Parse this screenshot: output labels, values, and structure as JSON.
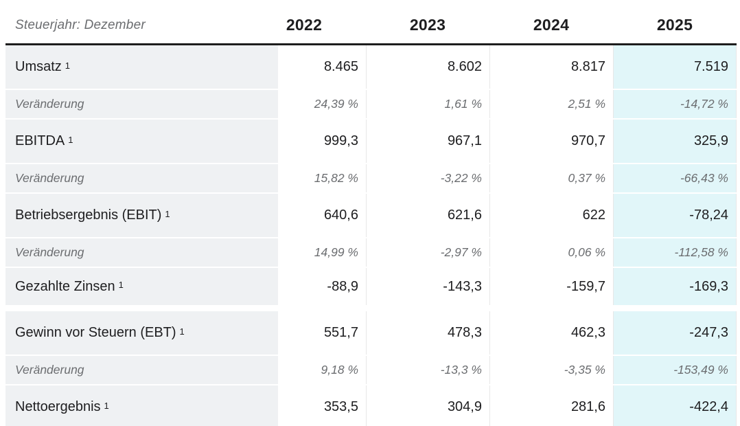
{
  "table": {
    "header": {
      "label": "Steuerjahr: Dezember",
      "years": [
        "2022",
        "2023",
        "2024",
        "2025"
      ]
    },
    "rows": [
      {
        "label": "Umsatz",
        "sup": "1",
        "type": "metric",
        "values": [
          "8.465",
          "8.602",
          "8.817",
          "7.519"
        ]
      },
      {
        "label": "Veränderung",
        "type": "change",
        "values": [
          "24,39 %",
          "1,61 %",
          "2,51 %",
          "-14,72 %"
        ]
      },
      {
        "label": "EBITDA",
        "sup": "1",
        "type": "metric",
        "values": [
          "999,3",
          "967,1",
          "970,7",
          "325,9"
        ]
      },
      {
        "label": "Veränderung",
        "type": "change",
        "values": [
          "15,82 %",
          "-3,22 %",
          "0,37 %",
          "-66,43 %"
        ]
      },
      {
        "label": "Betriebsergebnis (EBIT)",
        "sup": "1",
        "type": "metric",
        "values": [
          "640,6",
          "621,6",
          "622",
          "-78,24"
        ]
      },
      {
        "label": "Veränderung",
        "type": "change",
        "values": [
          "14,99 %",
          "-2,97 %",
          "0,06 %",
          "-112,58 %"
        ]
      },
      {
        "label": "Gezahlte Zinsen",
        "sup": "1",
        "type": "metric",
        "compact": true,
        "group_end": true,
        "values": [
          "-88,9",
          "-143,3",
          "-159,7",
          "-169,3"
        ]
      },
      {
        "label": "Gewinn vor Steuern (EBT)",
        "sup": "1",
        "type": "metric",
        "values": [
          "551,7",
          "478,3",
          "462,3",
          "-247,3"
        ]
      },
      {
        "label": "Veränderung",
        "type": "change",
        "values": [
          "9,18 %",
          "-13,3 %",
          "-3,35 %",
          "-153,49 %"
        ]
      },
      {
        "label": "Nettoergebnis",
        "sup": "1",
        "type": "metric",
        "values": [
          "353,5",
          "304,9",
          "281,6",
          "-422,4"
        ]
      }
    ]
  },
  "colors": {
    "highlight_bg": "#e1f6f9",
    "label_bg": "#eff1f3",
    "divider": "#e7e7e7",
    "header_border": "#1d1d1d",
    "text_primary": "#1d1d1f",
    "text_secondary": "#6b6d70"
  }
}
